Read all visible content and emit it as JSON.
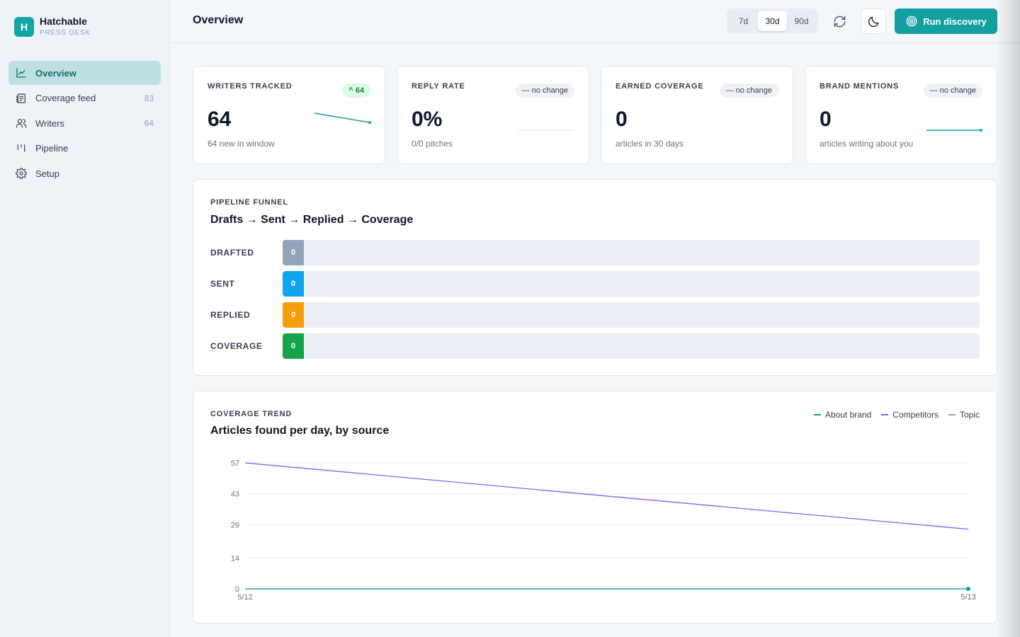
{
  "brand": {
    "logo_letter": "H",
    "name": "Hatchable",
    "subtitle": "PRESS DESK",
    "accent": "#14a6a6"
  },
  "sidebar": {
    "items": [
      {
        "label": "Overview",
        "count": "",
        "icon": "chart-line-icon",
        "active": true
      },
      {
        "label": "Coverage feed",
        "count": "83",
        "icon": "newspaper-icon",
        "active": false
      },
      {
        "label": "Writers",
        "count": "64",
        "icon": "users-icon",
        "active": false
      },
      {
        "label": "Pipeline",
        "count": "",
        "icon": "kanban-icon",
        "active": false
      },
      {
        "label": "Setup",
        "count": "",
        "icon": "gear-icon",
        "active": false
      }
    ]
  },
  "header": {
    "title": "Overview",
    "ranges": [
      "7d",
      "30d",
      "90d"
    ],
    "selected_range": "30d",
    "run_label": "Run discovery"
  },
  "stats": [
    {
      "label": "WRITERS TRACKED",
      "badge": "^ 64",
      "badge_up": true,
      "value": "64",
      "sub": "64 new in window",
      "trend": [
        1,
        0.7
      ]
    },
    {
      "label": "REPLY RATE",
      "badge": "— no change",
      "badge_up": false,
      "value": "0%",
      "sub": "0/0 pitches",
      "trend": [
        0,
        0
      ]
    },
    {
      "label": "EARNED COVERAGE",
      "badge": "— no change",
      "badge_up": false,
      "value": "0",
      "sub": "articles in 30 days",
      "trend": []
    },
    {
      "label": "BRAND MENTIONS",
      "badge": "— no change",
      "badge_up": false,
      "value": "0",
      "sub": "articles writing about you",
      "trend": [
        0,
        0
      ]
    }
  ],
  "funnel": {
    "section_label": "PIPELINE FUNNEL",
    "title": "Drafts → Sent → Replied → Coverage",
    "rows": [
      {
        "label": "DRAFTED",
        "value": "0",
        "color": "#94a3b8"
      },
      {
        "label": "SENT",
        "value": "0",
        "color": "#0ea5e9"
      },
      {
        "label": "REPLIED",
        "value": "0",
        "color": "#f59e0b"
      },
      {
        "label": "COVERAGE",
        "value": "0",
        "color": "#16a34a"
      }
    ]
  },
  "trend": {
    "section_label": "COVERAGE TREND",
    "title": "Articles found per day, by source"
  },
  "chart_data": {
    "type": "line",
    "x": [
      "5/12",
      "5/13"
    ],
    "yticks": [
      0,
      14,
      29,
      43,
      57
    ],
    "ylim": [
      0,
      57
    ],
    "grid": true,
    "legend": "top-right",
    "series": [
      {
        "name": "About brand",
        "values": [
          0,
          0
        ],
        "color": "#14a0a0"
      },
      {
        "name": "Competitors",
        "values": [
          57,
          27
        ],
        "color": "#8b5cf6"
      },
      {
        "name": "Topic",
        "values": [
          0,
          0
        ],
        "color": "#94a3b8"
      }
    ]
  }
}
